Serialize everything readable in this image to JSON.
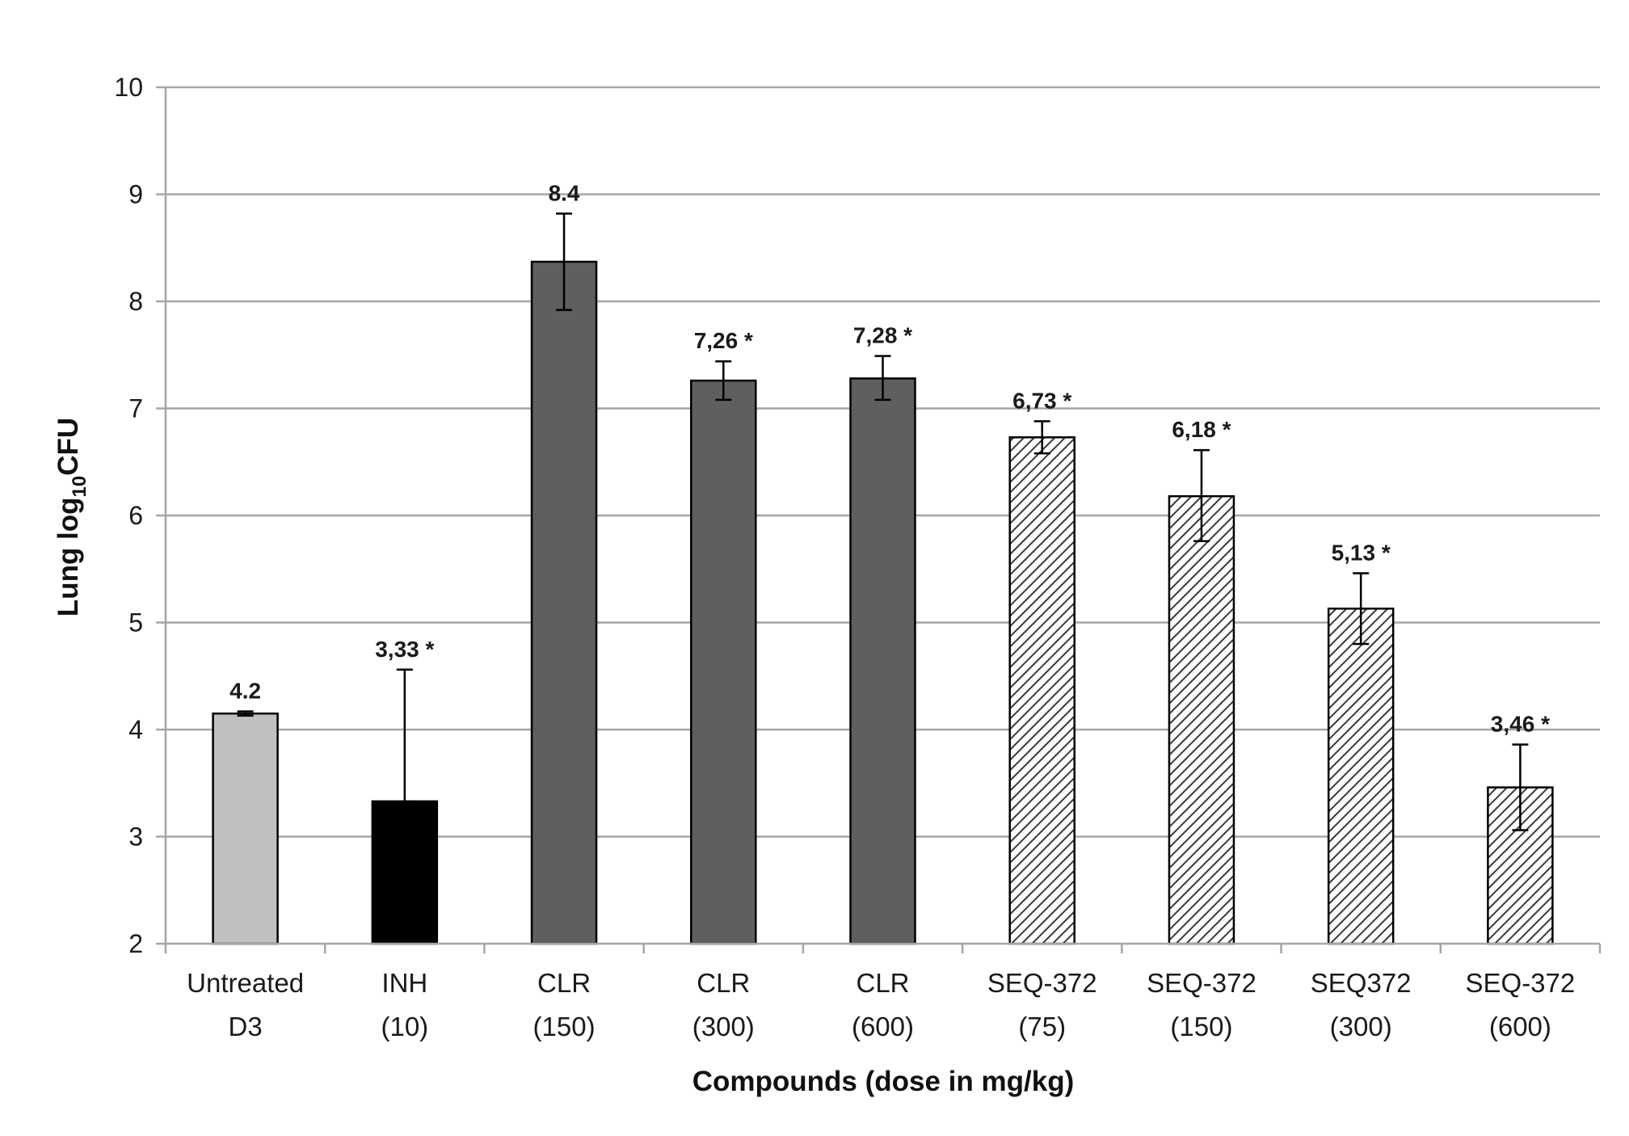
{
  "chart_data": {
    "type": "bar",
    "title": "",
    "xlabel": "Compounds (dose in mg/kg)",
    "ylabel": {
      "pre": "Lung log",
      "sub": "10",
      "post": "CFU"
    },
    "ylim": [
      2,
      10
    ],
    "yticks": [
      "2",
      "3",
      "4",
      "5",
      "6",
      "7",
      "8",
      "9",
      "10"
    ],
    "grid": true,
    "legend": "none",
    "categories": [
      [
        "Untreated",
        "D3"
      ],
      [
        "INH",
        "(10)"
      ],
      [
        "CLR",
        "(150)"
      ],
      [
        "CLR",
        "(300)"
      ],
      [
        "CLR",
        "(600)"
      ],
      [
        "SEQ-372",
        "(75)"
      ],
      [
        "SEQ-372",
        "(150)"
      ],
      [
        "SEQ372",
        "(300)"
      ],
      [
        "SEQ-372",
        "(600)"
      ]
    ],
    "values": [
      4.15,
      3.33,
      8.37,
      7.26,
      7.28,
      6.73,
      6.18,
      5.13,
      3.46
    ],
    "error_low": [
      4.13,
      3.33,
      7.92,
      7.08,
      7.08,
      6.58,
      5.76,
      4.8,
      3.06
    ],
    "error_high": [
      4.17,
      4.56,
      8.82,
      7.44,
      7.49,
      6.88,
      6.61,
      5.46,
      3.86
    ],
    "data_labels": [
      "4.2",
      "3,33 *",
      "8.4",
      "7,26 *",
      "7,28 *",
      "6,73 *",
      "6,18 *",
      "5,13 *",
      "3,46 *"
    ],
    "fill_styles": [
      "light",
      "black",
      "dark",
      "dark",
      "dark",
      "hatch",
      "hatch",
      "hatch",
      "hatch"
    ],
    "colors": {
      "light": "#c0c0c0",
      "black": "#000000",
      "dark": "#5f5f5f",
      "hatch_line": "#3a3a3a",
      "grid": "#a6a6a6",
      "border": "#000000"
    }
  }
}
